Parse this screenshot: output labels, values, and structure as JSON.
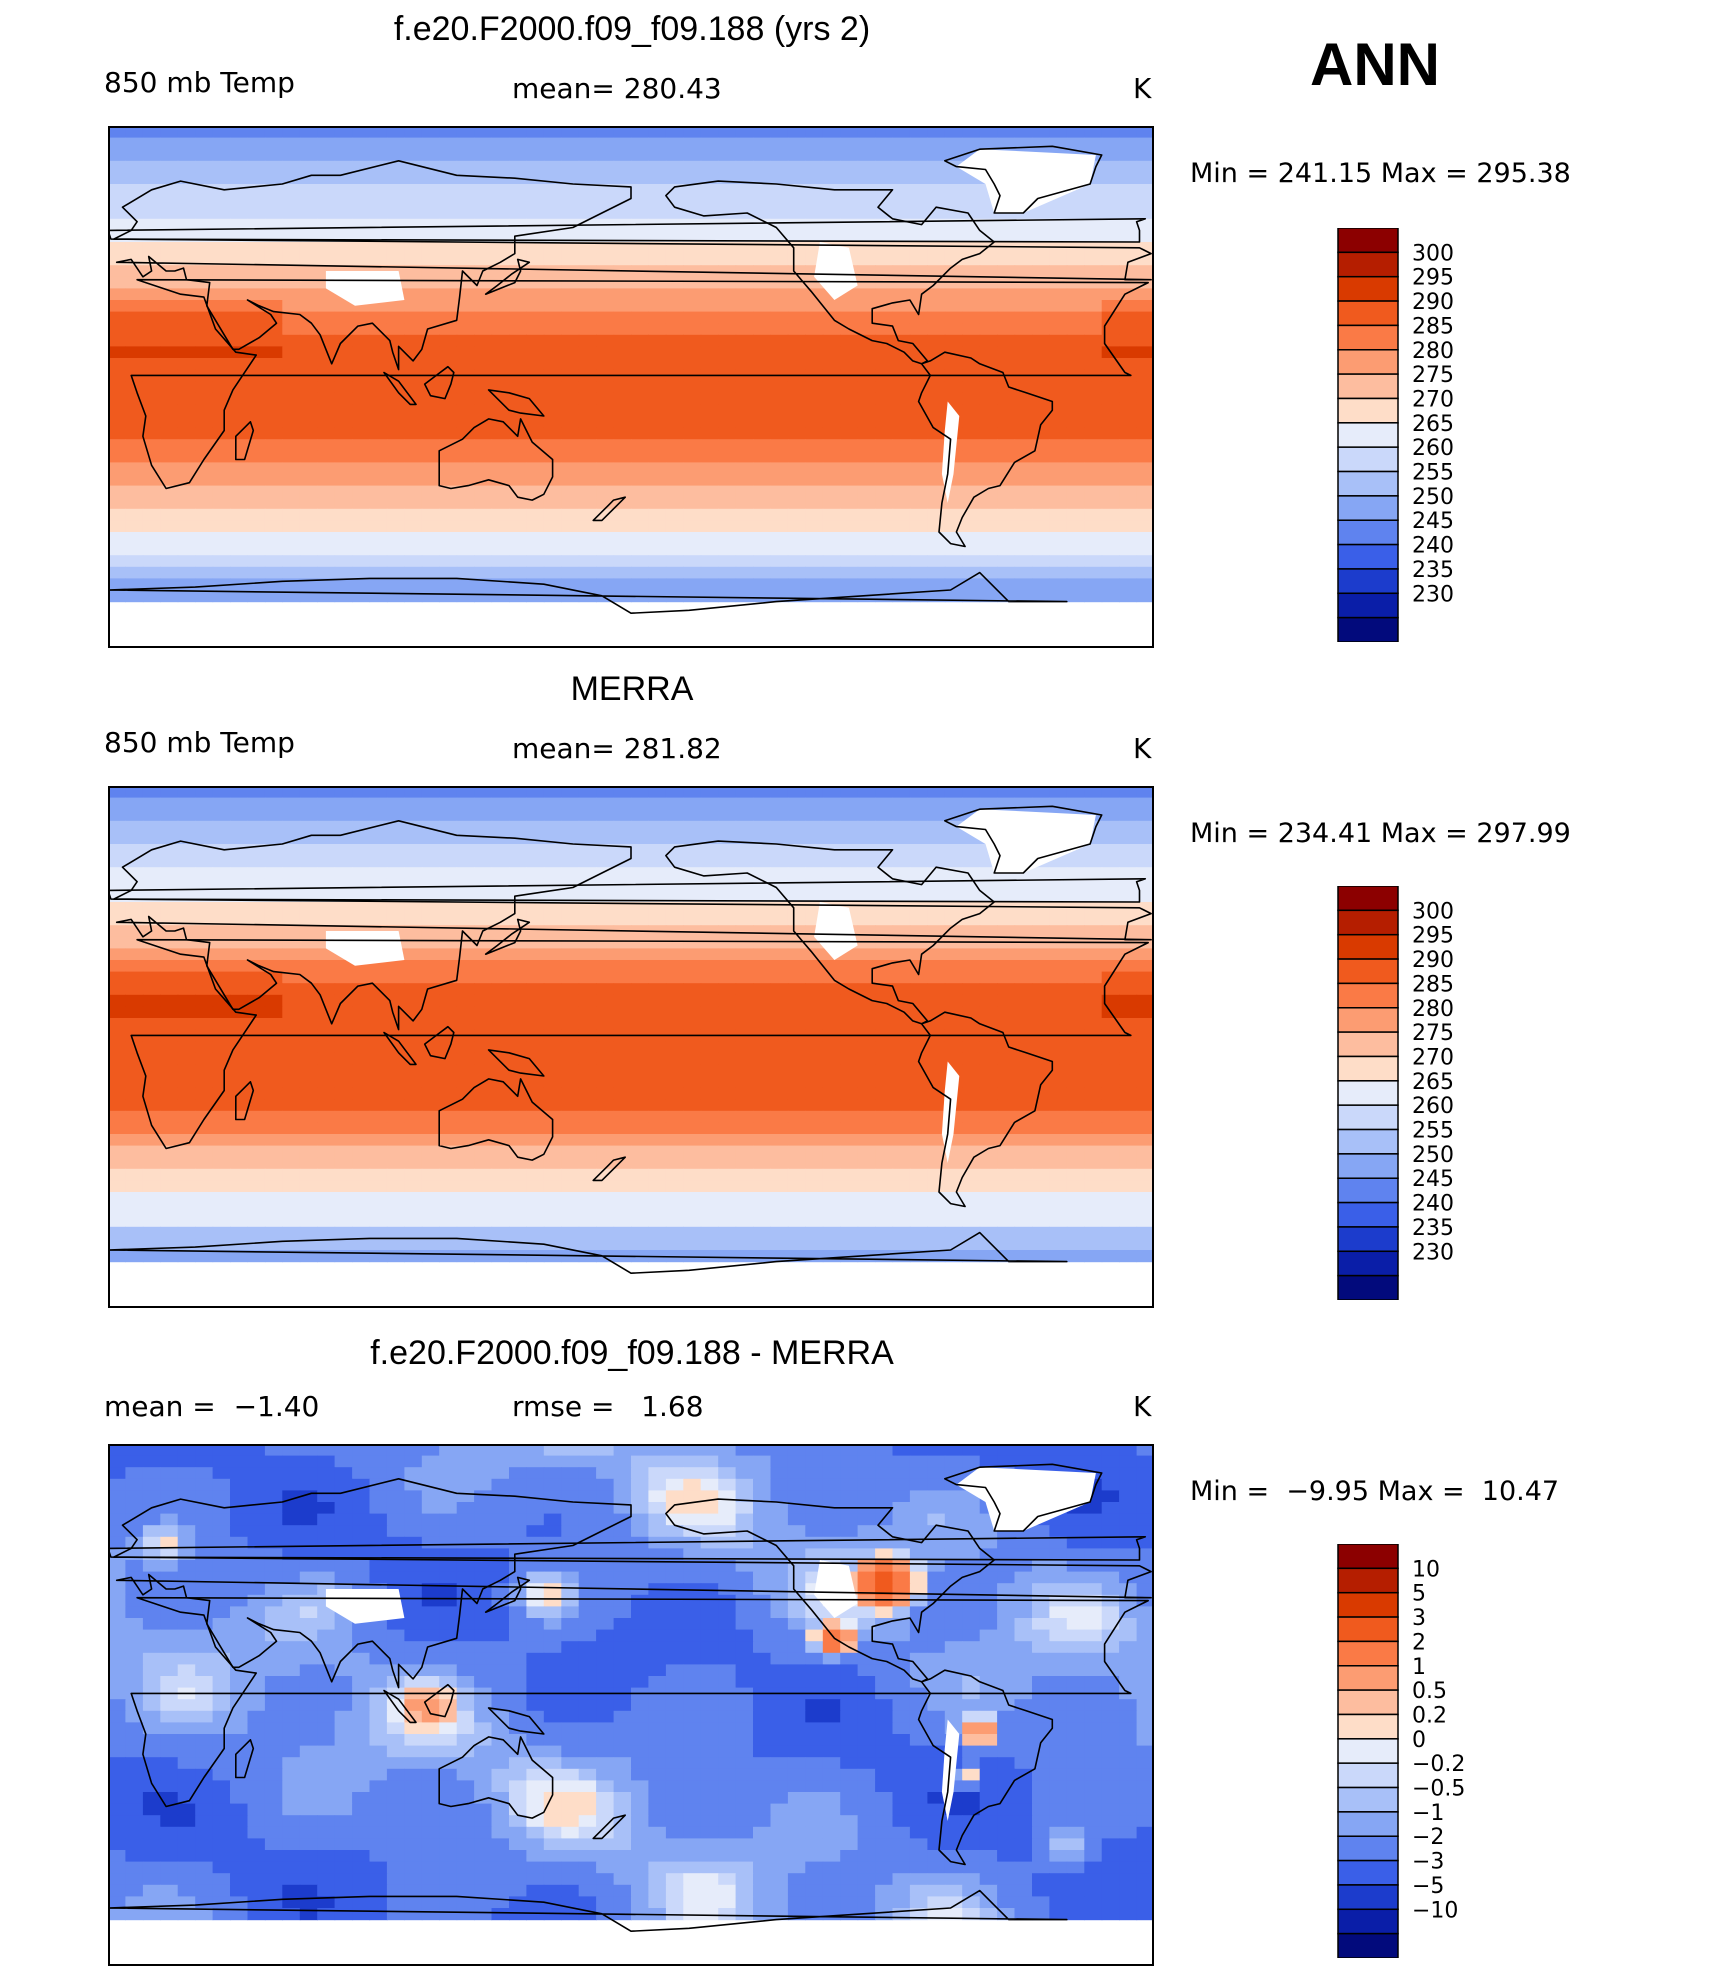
{
  "season": "ANN",
  "units": "K",
  "panels": [
    {
      "title": "f.e20.F2000.f09_f09.188 (yrs 2)",
      "left_label": "850 mb Temp",
      "mid_label": "mean= 280.43",
      "right_label": "K",
      "minmax": "Min = 241.15 Max = 295.38",
      "colorbar_levels": [
        "300",
        "295",
        "290",
        "285",
        "280",
        "275",
        "270",
        "265",
        "260",
        "255",
        "250",
        "245",
        "240",
        "235",
        "230"
      ],
      "colorbar_colors": [
        "#8c0000",
        "#b51e00",
        "#d93a00",
        "#f05a1e",
        "#fa7a46",
        "#fc9c72",
        "#fdbd9f",
        "#feddc8",
        "#e6ecfa",
        "#cad8fa",
        "#a8c0f8",
        "#86a6f4",
        "#5f83ef",
        "#3a5fe8",
        "#1c3ccc",
        "#0a1ea8",
        "#020a7c"
      ]
    },
    {
      "title": "MERRA",
      "left_label": "850 mb Temp",
      "mid_label": "mean= 281.82",
      "right_label": "K",
      "minmax": "Min = 234.41 Max = 297.99",
      "colorbar_levels": [
        "300",
        "295",
        "290",
        "285",
        "280",
        "275",
        "270",
        "265",
        "260",
        "255",
        "250",
        "245",
        "240",
        "235",
        "230"
      ],
      "colorbar_colors": [
        "#8c0000",
        "#b51e00",
        "#d93a00",
        "#f05a1e",
        "#fa7a46",
        "#fc9c72",
        "#fdbd9f",
        "#feddc8",
        "#e6ecfa",
        "#cad8fa",
        "#a8c0f8",
        "#86a6f4",
        "#5f83ef",
        "#3a5fe8",
        "#1c3ccc",
        "#0a1ea8",
        "#020a7c"
      ]
    },
    {
      "title": "f.e20.F2000.f09_f09.188 - MERRA",
      "left_label": "mean =  −1.40",
      "mid_label": "rmse =   1.68",
      "right_label": "K",
      "minmax": "Min =  −9.95 Max =  10.47",
      "colorbar_levels": [
        "10",
        "5",
        "3",
        "2",
        "1",
        "0.5",
        "0.2",
        "0",
        "−0.2",
        "−0.5",
        "−1",
        "−2",
        "−3",
        "−5",
        "−10"
      ],
      "colorbar_colors": [
        "#8c0000",
        "#b51e00",
        "#d93a00",
        "#f05a1e",
        "#fa7a46",
        "#fc9c72",
        "#fdbd9f",
        "#feddc8",
        "#e6ecfa",
        "#cad8fa",
        "#a8c0f8",
        "#86a6f4",
        "#5f83ef",
        "#3a5fe8",
        "#1c3ccc",
        "#0a1ea8",
        "#020a7c"
      ]
    }
  ],
  "chart_data": [
    {
      "type": "heatmap",
      "title": "f.e20.F2000.f09_f09.188 (yrs 2)",
      "variable": "850 mb Temp",
      "mean": 280.43,
      "min": 241.15,
      "max": 295.38,
      "levels": [
        230,
        235,
        240,
        245,
        250,
        255,
        260,
        265,
        270,
        275,
        280,
        285,
        290,
        295,
        300
      ]
    },
    {
      "type": "heatmap",
      "title": "MERRA",
      "variable": "850 mb Temp",
      "mean": 281.82,
      "min": 234.41,
      "max": 297.99,
      "levels": [
        230,
        235,
        240,
        245,
        250,
        255,
        260,
        265,
        270,
        275,
        280,
        285,
        290,
        295,
        300
      ]
    },
    {
      "type": "heatmap",
      "title": "f.e20.F2000.f09_f09.188 - MERRA",
      "mean": -1.4,
      "rmse": 1.68,
      "min": -9.95,
      "max": 10.47,
      "levels": [
        -10,
        -5,
        -3,
        -2,
        -1,
        -0.5,
        -0.2,
        0,
        0.2,
        0.5,
        1,
        2,
        3,
        5,
        10
      ]
    }
  ]
}
